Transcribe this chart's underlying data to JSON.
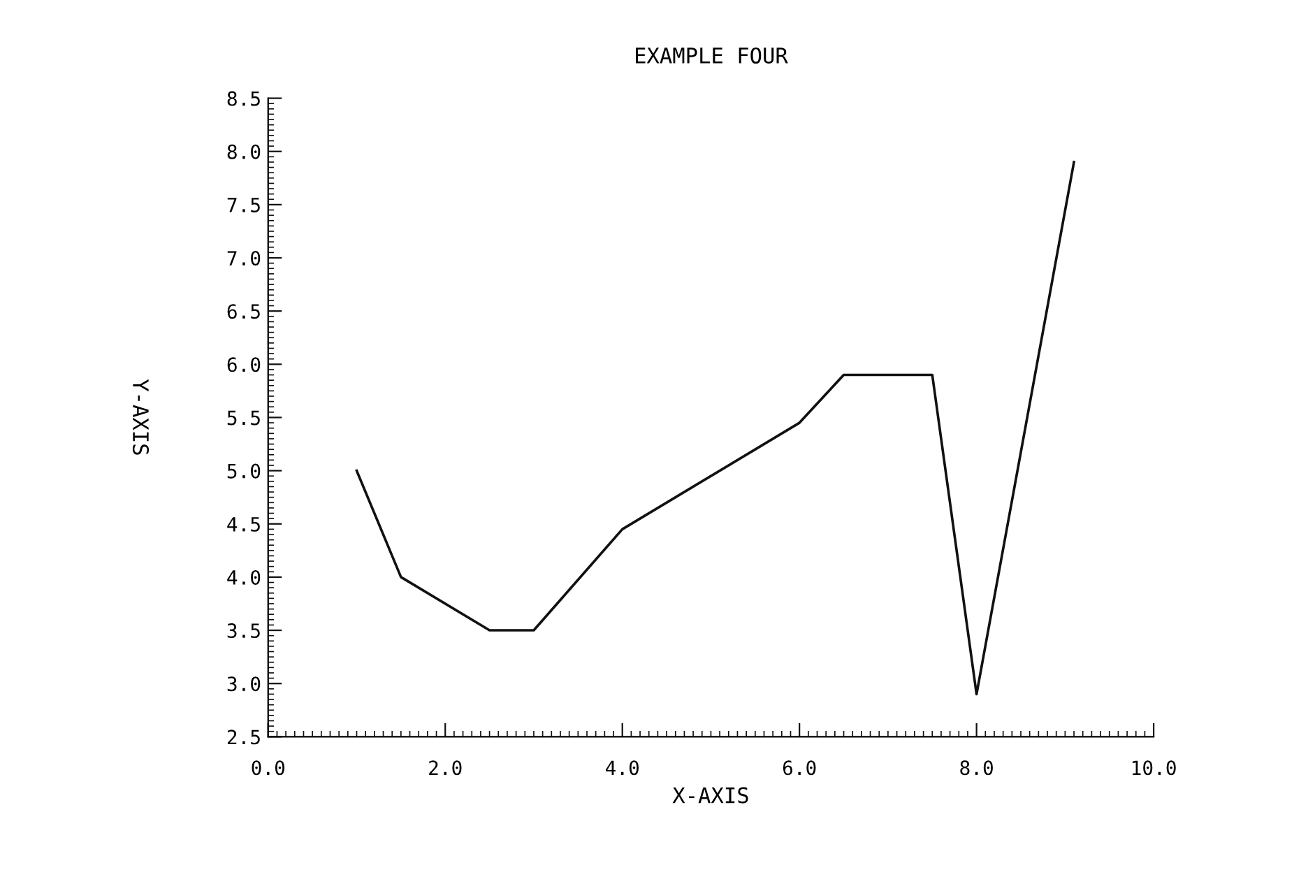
{
  "chart_data": {
    "type": "line",
    "title": "EXAMPLE FOUR",
    "xlabel": "X-AXIS",
    "ylabel": "Y-AXIS",
    "x": [
      1.0,
      1.5,
      2.5,
      3.0,
      4.0,
      6.0,
      6.5,
      7.5,
      8.0,
      9.1
    ],
    "series": [
      {
        "color": "#111111",
        "values": [
          5.0,
          4.0,
          3.5,
          3.5,
          4.45,
          5.45,
          5.9,
          5.9,
          2.9,
          7.9
        ]
      }
    ],
    "xlim": [
      0,
      10
    ],
    "ylim": [
      2.5,
      8.5
    ],
    "xticks": [
      {
        "value": 0,
        "label": "0.0"
      },
      {
        "value": 2,
        "label": "2.0"
      },
      {
        "value": 4,
        "label": "4.0"
      },
      {
        "value": 6,
        "label": "6.0"
      },
      {
        "value": 8,
        "label": "8.0"
      },
      {
        "value": 10,
        "label": "10.0"
      }
    ],
    "yticks": [
      2.5,
      {
        "value": 3,
        "label": "3.0"
      },
      3.5,
      {
        "value": 4,
        "label": "4.0"
      },
      4.5,
      {
        "value": 5,
        "label": "5.0"
      },
      5.5,
      {
        "value": 6,
        "label": "6.0"
      },
      6.5,
      {
        "value": 7,
        "label": "7.0"
      },
      7.5,
      {
        "value": 8,
        "label": "8.0"
      },
      8.5
    ],
    "grid": false,
    "marker": "none",
    "line_style": "solid"
  }
}
